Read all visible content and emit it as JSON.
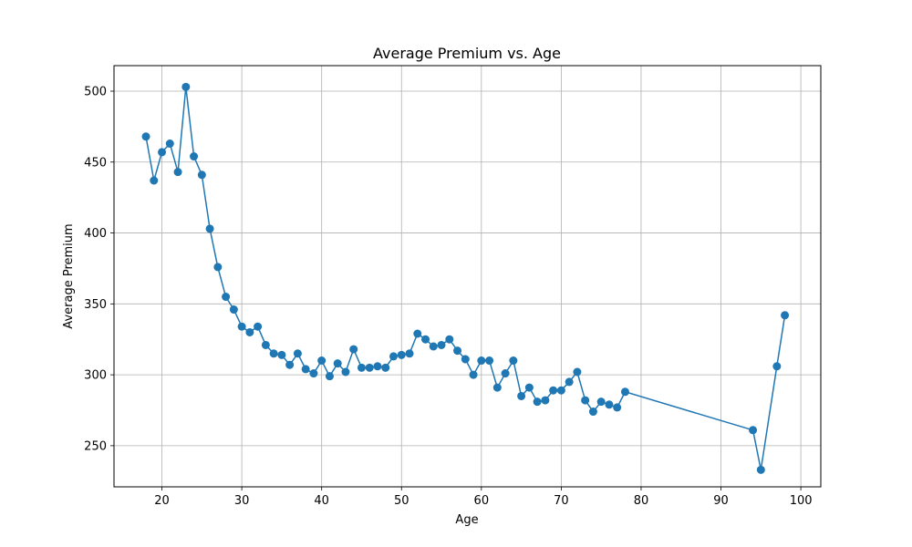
{
  "chart_data": {
    "type": "line",
    "title": "Average Premium vs. Age",
    "xlabel": "Age",
    "ylabel": "Average Premium",
    "xlim": [
      14,
      102.5
    ],
    "ylim": [
      221,
      518
    ],
    "xticks": [
      20,
      30,
      40,
      50,
      60,
      70,
      80,
      90,
      100
    ],
    "yticks": [
      250,
      300,
      350,
      400,
      450,
      500
    ],
    "grid": true,
    "marker": "circle",
    "line_color": "#1f77b4",
    "series": [
      {
        "x": [
          18,
          19,
          20,
          21,
          22,
          23,
          24,
          25,
          26,
          27,
          28,
          29,
          30,
          31,
          32,
          33,
          34,
          35,
          36,
          37,
          38,
          39,
          40,
          41,
          42,
          43,
          44,
          45,
          46,
          47,
          48,
          49,
          50,
          51,
          52,
          53,
          54,
          55,
          56,
          57,
          58,
          59,
          60,
          61,
          62,
          63,
          64,
          65,
          66,
          67,
          68,
          69,
          70,
          71,
          72,
          73,
          74,
          75,
          76,
          77,
          78,
          94,
          95,
          97,
          98
        ],
        "y": [
          468,
          437,
          457,
          463,
          443,
          503,
          454,
          441,
          403,
          376,
          355,
          346,
          334,
          330,
          334,
          321,
          315,
          314,
          307,
          315,
          304,
          301,
          310,
          299,
          308,
          302,
          318,
          305,
          305,
          306,
          305,
          313,
          314,
          315,
          329,
          325,
          320,
          321,
          325,
          317,
          311,
          300,
          310,
          310,
          291,
          301,
          310,
          285,
          291,
          281,
          282,
          289,
          289,
          295,
          302,
          282,
          274,
          281,
          279,
          277,
          288,
          261,
          233,
          306,
          342
        ]
      }
    ]
  }
}
